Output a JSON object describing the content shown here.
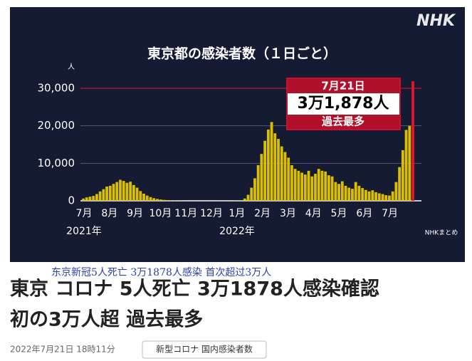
{
  "header": {
    "logo": "NHK"
  },
  "chart_data": {
    "type": "bar",
    "title": "東京都の感染者数（１日ごと）",
    "y_unit": "人",
    "color": "#d9bf00",
    "highlight_color": "#e0182d",
    "reference_color": "#e0182d",
    "ylim": [
      0,
      34000
    ],
    "yticks": [
      0,
      {
        "value": 10000,
        "label": "10,000"
      },
      {
        "value": 20000,
        "label": "20,000"
      },
      {
        "value": 30000,
        "label": "30,000"
      }
    ],
    "grid": true,
    "month_labels": [
      "7月",
      "8月",
      "9月",
      "10月",
      "11月",
      "12月",
      "1月",
      "2月",
      "3月",
      "4月",
      "5月",
      "6月",
      "7月"
    ],
    "year_labels": [
      "2021年",
      "2022年"
    ],
    "values": [
      600,
      900,
      1100,
      1300,
      1800,
      2500,
      3100,
      3800,
      4000,
      4500,
      5000,
      5600,
      5300,
      4800,
      5100,
      4200,
      3500,
      2600,
      1900,
      1400,
      1000,
      700,
      500,
      350,
      250,
      180,
      120,
      80,
      50,
      40,
      30,
      25,
      25,
      20,
      25,
      20,
      25,
      20,
      25,
      20,
      25,
      20,
      30,
      30,
      40,
      60,
      80,
      150,
      600,
      1600,
      3500,
      6000,
      9500,
      12500,
      16000,
      19000,
      21000,
      18000,
      16500,
      14500,
      13000,
      11500,
      9500,
      8500,
      8000,
      7500,
      7000,
      8000,
      6500,
      7200,
      8500,
      8000,
      7800,
      6800,
      6500,
      5000,
      4500,
      5200,
      4000,
      3500,
      3200,
      5000,
      4000,
      3400,
      2900,
      2500,
      2800,
      2300,
      2000,
      1800,
      1500,
      1400,
      2500,
      5000,
      9000,
      13500,
      18900,
      20000,
      31878
    ],
    "annotation": {
      "date": "7月21日",
      "value_label": "3万1,878人",
      "note": "過去最多"
    },
    "source": "NHKまとめ"
  },
  "caption": "东京新冠5人死亡 3万1878人感染 首次超过3万人",
  "article": {
    "title_lines": [
      "東京 コロナ 5人死亡 3万1878人感染確認",
      "初の3万人超 過去最多"
    ],
    "date": "2022年7月21日 18時11分",
    "tag": "新型コロナ 国内感染者数"
  }
}
